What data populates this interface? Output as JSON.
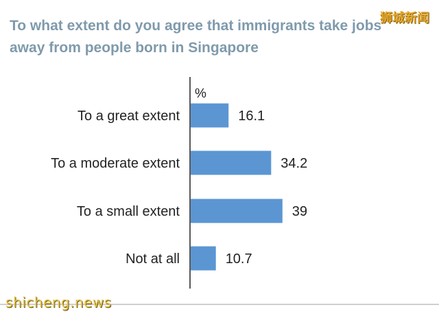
{
  "chart_data": {
    "type": "bar",
    "orientation": "horizontal",
    "title_lines": [
      "To what extent do you agree that immigrants take jobs",
      "away from people born in Singapore"
    ],
    "unit_label": "%",
    "categories": [
      "To a great extent",
      "To a moderate extent",
      "To a small extent",
      "Not at all"
    ],
    "values": [
      16.1,
      34.2,
      39,
      10.7
    ],
    "value_labels": [
      "16.1",
      "34.2",
      "39",
      "10.7"
    ],
    "xlim": [
      0,
      40
    ],
    "bar_color": "#5b96d3",
    "grid": false
  },
  "watermark": {
    "top": "狮城新闻",
    "bottom": "shicheng.news"
  }
}
